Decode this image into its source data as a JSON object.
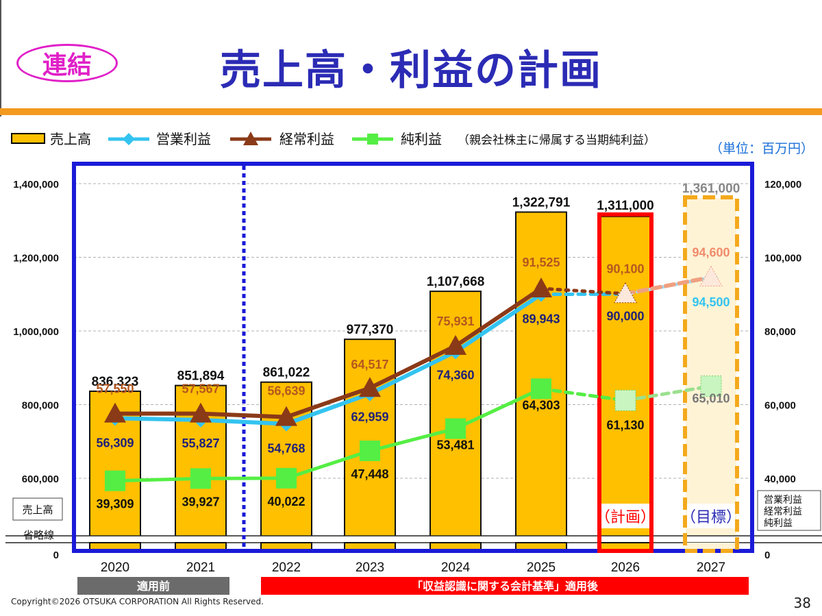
{
  "header": {
    "badge": "連結",
    "title": "売上高・利益の計画",
    "unit": "（単位：百万円）",
    "copyright": "Copyright©2026 OTSUKA CORPORATION All Rights Reserved.",
    "page_number": "38"
  },
  "legend": {
    "sales": "売上高",
    "operating": "営業利益",
    "ordinary": "経常利益",
    "net": "純利益",
    "net_note": "（親会社株主に帰属する当期純利益）"
  },
  "axis": {
    "left_ticks": [
      "1,400,000",
      "1,200,000",
      "1,000,000",
      "800,000",
      "600,000",
      "0"
    ],
    "right_ticks": [
      "120,000",
      "100,000",
      "80,000",
      "60,000",
      "40,000",
      "0"
    ],
    "left_axis_label": "売上高",
    "right_axis_label_lines": [
      "営業利益",
      "経常利益",
      "純利益"
    ],
    "break_label": "省略線"
  },
  "bands": {
    "before": "適用前",
    "after": "「収益認識に関する会計基準」適用後"
  },
  "annotations": {
    "plan": "（計画）",
    "target": "（目標）"
  },
  "colors": {
    "sales_bar": "#ffc000",
    "operating": "#33c3f0",
    "ordinary": "#8b3a18",
    "net": "#55ee44",
    "frame": "#1a1ad8",
    "plan_box": "#ff0000",
    "target_box": "#f4a91c",
    "band_before": "#6b6b6b",
    "band_after": "#ff0000"
  },
  "chart_data": {
    "type": "bar",
    "categories": [
      "2020",
      "2021",
      "2022",
      "2023",
      "2024",
      "2025",
      "2026",
      "2027"
    ],
    "sales": {
      "name": "売上高",
      "values": [
        836323,
        851894,
        861022,
        977370,
        1107668,
        1322791,
        1311000,
        1361000
      ],
      "labels": [
        "836,323",
        "851,894",
        "861,022",
        "977,370",
        "1,107,668",
        "1,322,791",
        "1,311,000",
        "1,361,000"
      ]
    },
    "series": [
      {
        "name": "営業利益",
        "values": [
          56309,
          55827,
          54768,
          62959,
          74360,
          89943,
          90000,
          94500
        ],
        "labels": [
          "56,309",
          "55,827",
          "54,768",
          "62,959",
          "74,360",
          "89,943",
          "90,000",
          "94,500"
        ]
      },
      {
        "name": "経常利益",
        "values": [
          57550,
          57567,
          56639,
          64517,
          75931,
          91525,
          90100,
          94600
        ],
        "labels": [
          "57,550",
          "57,567",
          "56,639",
          "64,517",
          "75,931",
          "91,525",
          "90,100",
          "94,600"
        ]
      },
      {
        "name": "純利益",
        "values": [
          39309,
          39927,
          40022,
          47448,
          53481,
          64303,
          61130,
          65010
        ],
        "labels": [
          "39,309",
          "39,927",
          "40,022",
          "47,448",
          "53,481",
          "64,303",
          "61,130",
          "65,010"
        ]
      }
    ],
    "y_left_range": [
      600000,
      1400000
    ],
    "y_right_range": [
      40000,
      120000
    ],
    "axis_break": true,
    "grid": true,
    "legend_position": "top",
    "forecast_categories": [
      "2026",
      "2027"
    ]
  }
}
